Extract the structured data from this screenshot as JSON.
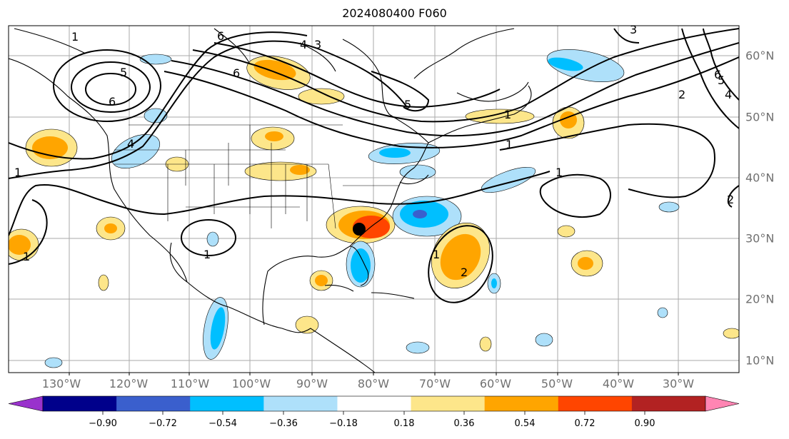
{
  "title": "2024080400 F060",
  "lon_labels": [
    "130°W",
    "120°W",
    "110°W",
    "100°W",
    "90°W",
    "80°W",
    "70°W",
    "60°W",
    "50°W",
    "40°W",
    "30°W"
  ],
  "lat_labels": [
    "60°N",
    "50°N",
    "40°N",
    "30°N",
    "20°N",
    "10°N"
  ],
  "contour_labels": [
    "5",
    "6",
    "1",
    "1",
    "6",
    "4",
    "3",
    "6",
    "5",
    "4",
    "1",
    "2",
    "3",
    "5",
    "4",
    "6",
    "1",
    "2",
    "1",
    "1",
    "2",
    "1",
    "1"
  ],
  "colorbar": {
    "ticks": [
      "−0.90",
      "−0.72",
      "−0.54",
      "−0.36",
      "−0.18",
      "0.18",
      "0.36",
      "0.54",
      "0.72",
      "0.90"
    ],
    "colors": [
      "#9932cc",
      "#00008b",
      "#3a5fcd",
      "#00bfff",
      "#aee0fa",
      "#ffffff",
      "#fde68a",
      "#ffa500",
      "#ff4500",
      "#b22222",
      "#ff85b3"
    ],
    "under_color": "#9932cc",
    "over_color": "#ff85b3"
  },
  "colors": {
    "land": "#ffffff",
    "grid": "#aaaaaa",
    "axis_label": "#707070"
  },
  "marker": "storm-center-dot"
}
